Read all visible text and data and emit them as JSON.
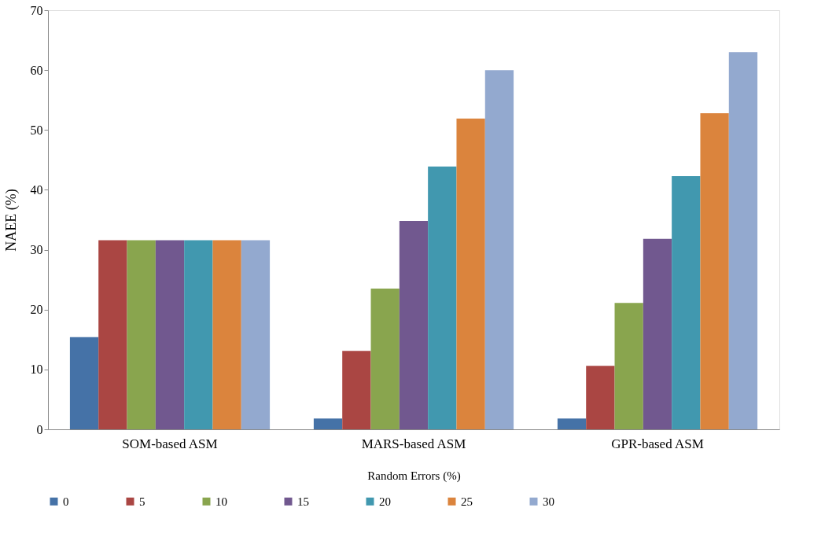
{
  "chart_data": {
    "type": "bar",
    "xlabel": "Random Errors (%)",
    "ylabel": "NAEE (%)",
    "categories": [
      "SOM-based ASM",
      "MARS-based ASM",
      "GPR-based ASM"
    ],
    "series": [
      {
        "name": "0",
        "color": "#4572a7",
        "values": [
          15.4,
          1.8,
          1.8
        ]
      },
      {
        "name": "5",
        "color": "#aa4643",
        "values": [
          31.6,
          13.1,
          10.6
        ]
      },
      {
        "name": "10",
        "color": "#89a54e",
        "values": [
          31.6,
          23.5,
          21.1
        ]
      },
      {
        "name": "15",
        "color": "#71588f",
        "values": [
          31.6,
          34.8,
          31.8
        ]
      },
      {
        "name": "20",
        "color": "#4198af",
        "values": [
          31.6,
          43.9,
          42.3
        ]
      },
      {
        "name": "25",
        "color": "#db843d",
        "values": [
          31.6,
          51.9,
          52.8
        ]
      },
      {
        "name": "30",
        "color": "#93a9cf",
        "values": [
          31.6,
          60.0,
          63.0
        ]
      }
    ],
    "ylim": [
      0,
      70
    ],
    "yticks": [
      0,
      10,
      20,
      30,
      40,
      50,
      60,
      70
    ],
    "grid": false,
    "legend": "bottom"
  }
}
